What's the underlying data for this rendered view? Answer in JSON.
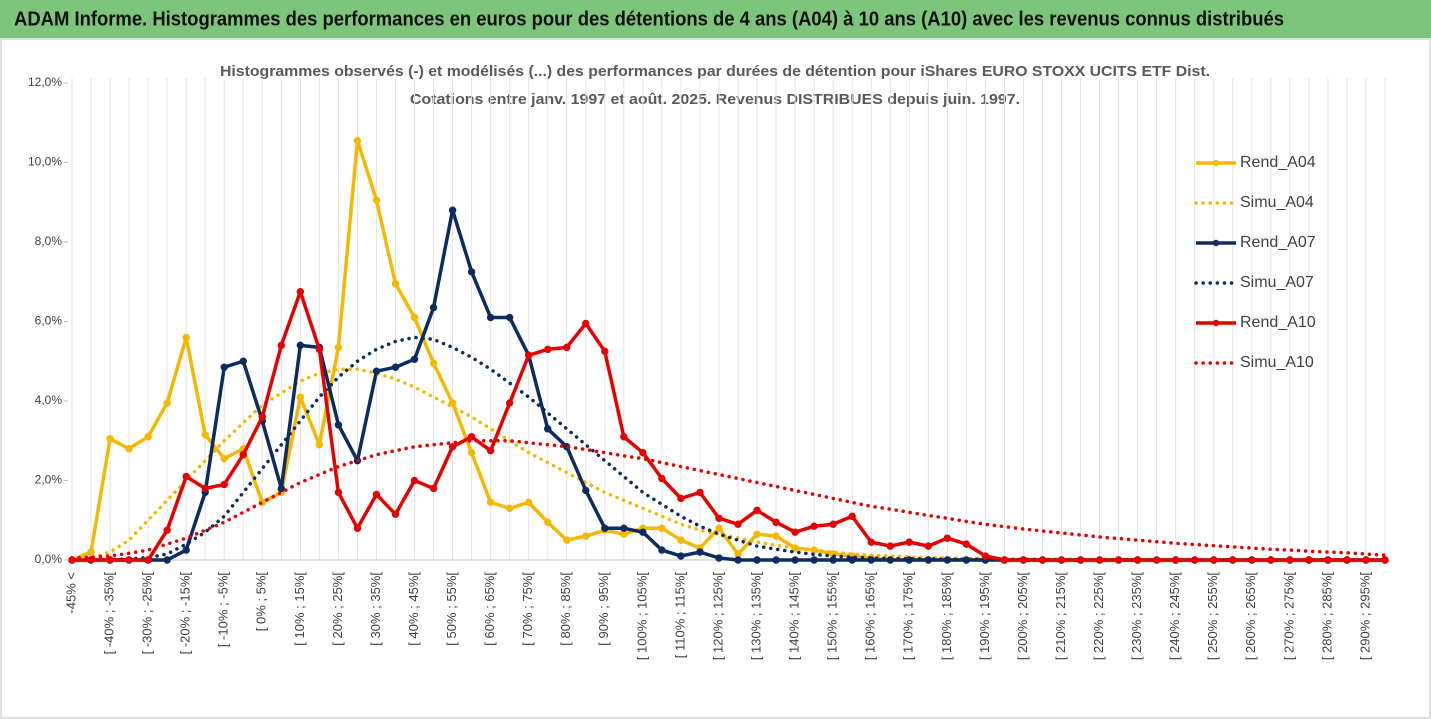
{
  "chart_data": {
    "type": "line",
    "header": "ADAM Informe. Histogrammes des performances en euros pour des détentions de 4 ans (A04) à 10 ans (A10) avec les revenus connus distribués",
    "title": "Histogrammes observés (-) et modélisés (...) des performances par durées de détention pour iShares EURO STOXX UCITS ETF Dist.",
    "subtitle": "Cotations entre janv. 1997 et août. 2025. Revenus DISTRIBUES depuis juin. 1997.",
    "categories": [
      "-45% <",
      null,
      "[ -40% ; -35%[",
      null,
      "[ -30% ; -25%[",
      null,
      "[ -20% ; -15%[",
      null,
      "[ -10% ; -5%[",
      null,
      "[ 0% ; 5%[",
      null,
      "[ 10% ; 15%[",
      null,
      "[ 20% ; 25%[",
      null,
      "[ 30% ; 35%[",
      null,
      "[ 40% ; 45%[",
      null,
      "[ 50% ; 55%[",
      null,
      "[ 60% ; 65%[",
      null,
      "[ 70% ; 75%[",
      null,
      "[ 80% ; 85%[",
      null,
      "[ 90% ; 95%[",
      null,
      "[ 100% ; 105%[",
      null,
      "[ 110% ; 115%[",
      null,
      "[ 120% ; 125%[",
      null,
      "[ 130% ; 135%[",
      null,
      "[ 140% ; 145%[",
      null,
      "[ 150% ; 155%[",
      null,
      "[ 160% ; 165%[",
      null,
      "[ 170% ; 175%[",
      null,
      "[ 180% ; 185%[",
      null,
      "[ 190% ; 195%[",
      null,
      "[ 200% ; 205%[",
      null,
      "[ 210% ; 215%[",
      null,
      "[ 220% ; 225%[",
      null,
      "[ 230% ; 235%[",
      null,
      "[ 240% ; 245%[",
      null,
      "[ 250% ; 255%[",
      null,
      "[ 260% ; 265%[",
      null,
      "[ 270% ; 275%[",
      null,
      "[ 280% ; 285%[",
      null,
      "[ 290% ; 295%[",
      null
    ],
    "series": [
      {
        "name": "Rend_A04",
        "color": "#f5b800",
        "line_style": "solid",
        "markers": true,
        "values": [
          0,
          0.2,
          3.05,
          2.8,
          3.1,
          3.95,
          5.6,
          3.15,
          2.55,
          2.8,
          1.45,
          1.7,
          4.1,
          2.9,
          5.35,
          10.55,
          9.05,
          6.95,
          6.1,
          4.95,
          3.95,
          2.7,
          1.45,
          1.3,
          1.45,
          0.95,
          0.5,
          0.6,
          0.75,
          0.65,
          0.8,
          0.8,
          0.5,
          0.3,
          0.8,
          0.15,
          0.65,
          0.6,
          0.3,
          0.25,
          0.15,
          0.1,
          0.05,
          0,
          0,
          0,
          0,
          0,
          0,
          0,
          0,
          0,
          0,
          0,
          0,
          0,
          0,
          0,
          0,
          0,
          0,
          0,
          0,
          0,
          0,
          0,
          0,
          0,
          0,
          0
        ]
      },
      {
        "name": "Simu_A04",
        "color": "#f5b800",
        "line_style": "dotted",
        "markers": false,
        "values": [
          0.02,
          0.05,
          0.2,
          0.5,
          1.0,
          1.5,
          2.0,
          2.5,
          3.0,
          3.45,
          3.9,
          4.2,
          4.5,
          4.7,
          4.8,
          4.8,
          4.7,
          4.55,
          4.35,
          4.1,
          3.85,
          3.6,
          3.3,
          3.0,
          2.7,
          2.45,
          2.2,
          1.95,
          1.7,
          1.5,
          1.3,
          1.1,
          0.9,
          0.75,
          0.65,
          0.55,
          0.45,
          0.37,
          0.3,
          0.25,
          0.2,
          0.15,
          0.12,
          0.1,
          0.08,
          0.06,
          0.05,
          0.04,
          0.04,
          0.03,
          0.03,
          0.03,
          0.02,
          0.02,
          0.02,
          0.02,
          0.02,
          0.01,
          0.01,
          0.01,
          0.01,
          0.01,
          0.01,
          0.01,
          0,
          0,
          0,
          0,
          0,
          0
        ]
      },
      {
        "name": "Rend_A07",
        "color": "#0d2b5e",
        "line_style": "solid",
        "markers": true,
        "values": [
          0,
          0,
          0,
          0,
          0,
          0,
          0.25,
          1.7,
          4.85,
          5.0,
          3.5,
          1.8,
          5.4,
          5.35,
          3.4,
          2.5,
          4.75,
          4.85,
          5.05,
          6.35,
          8.8,
          7.25,
          6.1,
          6.1,
          5.15,
          3.3,
          2.85,
          1.75,
          0.8,
          0.8,
          0.7,
          0.25,
          0.1,
          0.2,
          0.05,
          0,
          0,
          0,
          0,
          0,
          0,
          0,
          0,
          0,
          0,
          0,
          0,
          0,
          0,
          0,
          0,
          0,
          0,
          0,
          0,
          0,
          0,
          0,
          0,
          0,
          0,
          0,
          0,
          0,
          0,
          0,
          0,
          0,
          0,
          0
        ]
      },
      {
        "name": "Simu_A07",
        "color": "#0d2b5e",
        "line_style": "dotted",
        "markers": false,
        "values": [
          0,
          0,
          0.01,
          0.03,
          0.06,
          0.15,
          0.4,
          0.7,
          1.1,
          1.7,
          2.3,
          2.9,
          3.5,
          4.1,
          4.6,
          5.0,
          5.3,
          5.5,
          5.6,
          5.55,
          5.35,
          5.1,
          4.8,
          4.45,
          4.1,
          3.7,
          3.3,
          2.9,
          2.5,
          2.1,
          1.7,
          1.4,
          1.1,
          0.85,
          0.65,
          0.5,
          0.35,
          0.27,
          0.2,
          0.14,
          0.1,
          0.07,
          0.05,
          0.04,
          0.03,
          0.03,
          0.02,
          0.02,
          0.02,
          0.01,
          0.01,
          0.01,
          0.01,
          0,
          0,
          0,
          0,
          0,
          0,
          0,
          0,
          0,
          0,
          0,
          0,
          0,
          0,
          0,
          0,
          0
        ]
      },
      {
        "name": "Rend_A10",
        "color": "#e60000",
        "line_style": "solid",
        "markers": true,
        "values": [
          0,
          0,
          0,
          0,
          0,
          0.75,
          2.1,
          1.8,
          1.9,
          2.65,
          3.6,
          5.4,
          6.75,
          5.3,
          1.7,
          0.8,
          1.65,
          1.15,
          2.0,
          1.8,
          2.85,
          3.1,
          2.75,
          3.95,
          5.15,
          5.3,
          5.35,
          5.95,
          5.25,
          3.1,
          2.7,
          2.05,
          1.55,
          1.7,
          1.05,
          0.9,
          1.25,
          0.95,
          0.7,
          0.85,
          0.9,
          1.1,
          0.45,
          0.35,
          0.45,
          0.35,
          0.55,
          0.4,
          0.1,
          0,
          0,
          0,
          0,
          0,
          0,
          0,
          0,
          0,
          0,
          0,
          0,
          0,
          0,
          0,
          0,
          0,
          0,
          0,
          0,
          0
        ]
      },
      {
        "name": "Simu_A10",
        "color": "#e60000",
        "line_style": "dotted",
        "markers": false,
        "values": [
          0.05,
          0.07,
          0.1,
          0.17,
          0.25,
          0.4,
          0.55,
          0.75,
          0.95,
          1.2,
          1.45,
          1.7,
          1.95,
          2.15,
          2.35,
          2.5,
          2.65,
          2.75,
          2.85,
          2.9,
          2.95,
          3.0,
          3.0,
          3.0,
          2.95,
          2.9,
          2.85,
          2.78,
          2.7,
          2.62,
          2.55,
          2.45,
          2.35,
          2.25,
          2.15,
          2.05,
          1.95,
          1.85,
          1.75,
          1.65,
          1.55,
          1.45,
          1.35,
          1.28,
          1.2,
          1.12,
          1.05,
          0.97,
          0.9,
          0.84,
          0.78,
          0.73,
          0.68,
          0.63,
          0.58,
          0.54,
          0.5,
          0.46,
          0.42,
          0.39,
          0.36,
          0.33,
          0.3,
          0.27,
          0.25,
          0.22,
          0.2,
          0.18,
          0.15,
          0.12
        ]
      }
    ],
    "ylim": [
      0,
      12
    ],
    "yticks": [
      {
        "value": 0,
        "label": "0,0%"
      },
      {
        "value": 2,
        "label": "2,0%"
      },
      {
        "value": 4,
        "label": "4,0%"
      },
      {
        "value": 6,
        "label": "6,0%"
      },
      {
        "value": 8,
        "label": "8,0%"
      },
      {
        "value": 10,
        "label": "10,0%"
      },
      {
        "value": 12,
        "label": "12,0%"
      }
    ],
    "grid": "vertical",
    "legend": "right"
  }
}
